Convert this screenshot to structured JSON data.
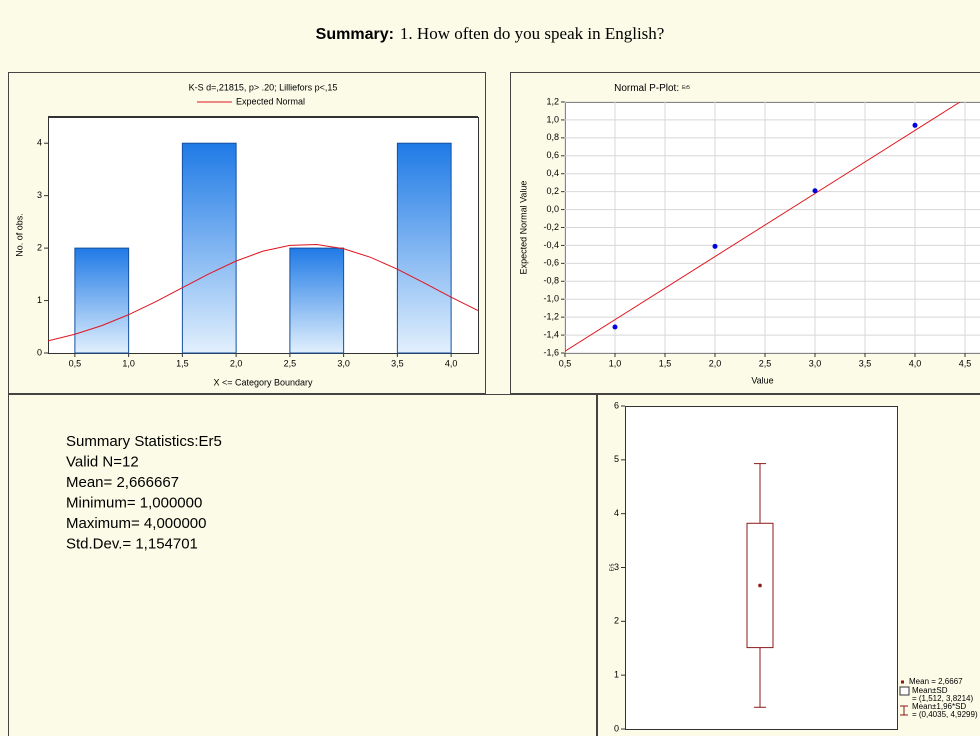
{
  "header": {
    "label": "Summary:",
    "title": "1.   How often do you speak in English?"
  },
  "chart_data": [
    {
      "type": "histogram",
      "title": "K-S d=,21815, p> .20; Lilliefors p<,15",
      "xlabel": "X <= Category Boundary",
      "ylabel": "No. of obs.",
      "bins": [
        0.5,
        1.0,
        1.5,
        2.0,
        2.5,
        3.0,
        3.5,
        4.0
      ],
      "values": [
        2,
        0,
        4,
        0,
        2,
        0,
        4
      ],
      "color": "#1f7ae6",
      "xlim": [
        0.25,
        4.25
      ],
      "ylim": [
        0,
        4.5
      ],
      "xticks": [
        {
          "value": 0.5,
          "label": "0,5"
        },
        {
          "value": 1.0,
          "label": "1,0"
        },
        {
          "value": 1.5,
          "label": "1,5"
        },
        {
          "value": 2.0,
          "label": "2,0"
        },
        {
          "value": 2.5,
          "label": "2,5"
        },
        {
          "value": 3.0,
          "label": "3,0"
        },
        {
          "value": 3.5,
          "label": "3,5"
        },
        {
          "value": 4.0,
          "label": "4,0"
        }
      ],
      "yticks": [
        0,
        1,
        2,
        3,
        4
      ],
      "grid": false,
      "curve": {
        "name": "Expected Normal",
        "color": "#e0141e",
        "x": [
          0.25,
          0.5,
          0.75,
          1.0,
          1.25,
          1.5,
          1.75,
          2.0,
          2.25,
          2.5,
          2.75,
          3.0,
          3.25,
          3.5,
          3.75,
          4.0,
          4.25
        ],
        "y": [
          0.232,
          0.357,
          0.522,
          0.731,
          0.976,
          1.245,
          1.513,
          1.754,
          1.942,
          2.052,
          2.068,
          1.988,
          1.825,
          1.598,
          1.335,
          1.064,
          0.81
        ]
      }
    },
    {
      "type": "scatter",
      "title": "Normal P-Plot:",
      "title_suffix": "Er5",
      "xlabel": "Value",
      "ylabel": "Expected Normal Value",
      "x": [
        1,
        2,
        3,
        4
      ],
      "values": [
        -1.31,
        -0.41,
        0.21,
        0.94
      ],
      "color": "#0000e0",
      "xlim": [
        0.5,
        4.65
      ],
      "ylim": [
        -1.6,
        1.2
      ],
      "xticks": [
        {
          "value": 0.5,
          "label": "0,5"
        },
        {
          "value": 1.0,
          "label": "1,0"
        },
        {
          "value": 1.5,
          "label": "1,5"
        },
        {
          "value": 2.0,
          "label": "2,0"
        },
        {
          "value": 2.5,
          "label": "2,5"
        },
        {
          "value": 3.0,
          "label": "3,0"
        },
        {
          "value": 3.5,
          "label": "3,5"
        },
        {
          "value": 4.0,
          "label": "4,0"
        },
        {
          "value": 4.5,
          "label": "4,5"
        }
      ],
      "yticks": [
        {
          "value": -1.6,
          "label": "-1,6"
        },
        {
          "value": -1.4,
          "label": "-1,4"
        },
        {
          "value": -1.2,
          "label": "-1,2"
        },
        {
          "value": -1.0,
          "label": "-1,0"
        },
        {
          "value": -0.8,
          "label": "-0,8"
        },
        {
          "value": -0.6,
          "label": "-0,6"
        },
        {
          "value": -0.4,
          "label": "-0,4"
        },
        {
          "value": -0.2,
          "label": "-0,2"
        },
        {
          "value": 0.0,
          "label": "0,0"
        },
        {
          "value": 0.2,
          "label": "0,2"
        },
        {
          "value": 0.4,
          "label": "0,4"
        },
        {
          "value": 0.6,
          "label": "0,6"
        },
        {
          "value": 0.8,
          "label": "0,8"
        },
        {
          "value": 1.0,
          "label": "1,0"
        },
        {
          "value": 1.2,
          "label": "1,2"
        }
      ],
      "grid": true,
      "fit_line": {
        "color": "#e0141e",
        "x": [
          0.5,
          4.45
        ],
        "y": [
          -1.58,
          1.2
        ]
      }
    },
    {
      "type": "box",
      "ylabel": "Er5",
      "ylim": [
        0,
        6
      ],
      "yticks": [
        0,
        1,
        2,
        3,
        4,
        5,
        6
      ],
      "grid": false,
      "mean": 2.6667,
      "box": [
        1.512,
        3.8214
      ],
      "whiskers": [
        0.4035,
        4.9299
      ],
      "color": "#8b1a1a",
      "legend": [
        "Mean = 2,6667",
        "Mean±SD",
        "= (1,512, 3,8214)",
        "Mean±1,96*SD",
        "= (0,4035, 4,9299)"
      ]
    }
  ],
  "summary_stats": {
    "lines": [
      "Summary Statistics:Er5",
      "Valid N=12",
      "Mean= 2,666667",
      "Minimum= 1,000000",
      "Maximum= 4,000000",
      "Std.Dev.= 1,154701"
    ]
  }
}
